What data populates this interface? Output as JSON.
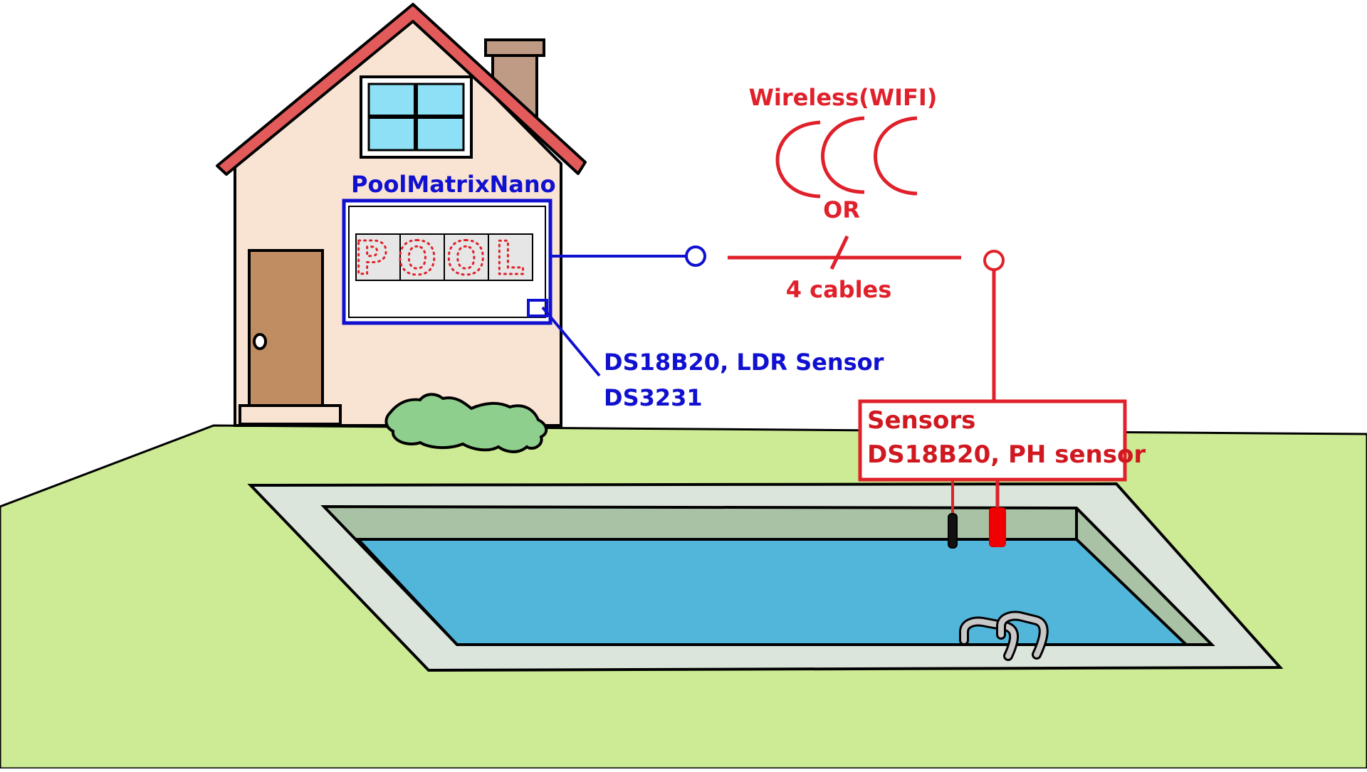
{
  "device": {
    "name": "PoolMatrixNano",
    "display_text": "POOL",
    "indoor_sensors_line1": "DS18B20, LDR Sensor",
    "indoor_sensors_line2": "DS3231"
  },
  "link": {
    "wireless_label": "Wireless(WIFI)",
    "or_label": "OR",
    "cable_label": "4 cables"
  },
  "pool_sensors": {
    "title": "Sensors",
    "list": "DS18B20, PH sensor"
  },
  "colors": {
    "device": "#1010d0",
    "link": "#e0202a",
    "grass": "#cdeb94",
    "water": "#52b6db",
    "house_wall": "#f9e4d4",
    "roof": "#e25a5a",
    "door": "#c08c62"
  }
}
